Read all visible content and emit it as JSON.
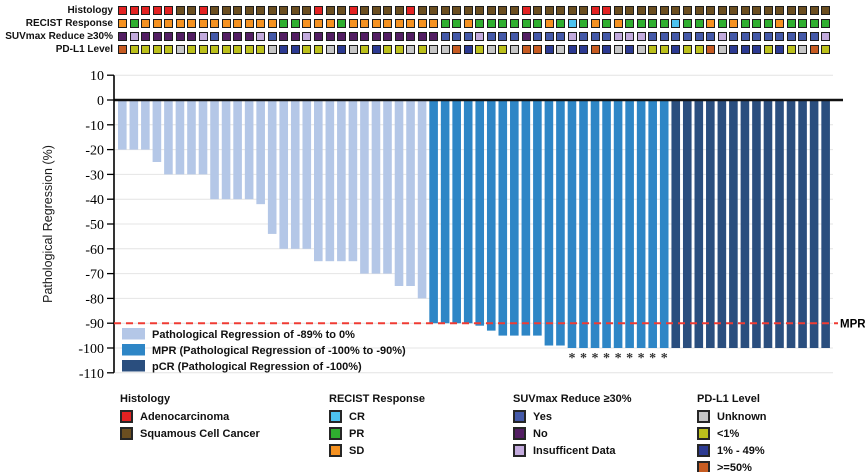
{
  "annotation_tracks": {
    "color_map": {
      "A": "#e32222",
      "S": "#6b4e20",
      "O": "#f59120",
      "G": "#2fae2f",
      "C": "#4dc3f0",
      "Y": "#4459a8",
      "N": "#531e63",
      "I": "#c3abdd",
      "U": "#c6c6c6",
      "L": "#bcc01c",
      "M": "#2c3a92",
      "H": "#c75c22"
    },
    "rows": [
      {
        "label": "Histology",
        "values": "AAAAASSASSSSSSSSSASSASSSSASSSSSSSSSASSSSSAASSSSSSSSSSSSSSSSSSS"
      },
      {
        "label": "RECIST Response",
        "values": "OGOOOOOOOOOOOOGGOOOGOOOOOOOOGGOGGGGGGOGCGOGOGGGGCGGOGOGGGOGGGG"
      },
      {
        "label": "SUVmax Reduce ≥30%",
        "values": "NINNNNNIYNNNIYNNINNNNNNNNNNNYYYIYYYNYYYIYYYIIIYYYYYYIYYYYYYYYI"
      },
      {
        "label": "PD-L1 Level",
        "values": "HLLLLULLLLLLLUMMLLUMULMLLULUUHMLULUHHMUMMHMUMULLMLLHUMMMLMLUHL"
      }
    ]
  },
  "chart_data": {
    "type": "bar",
    "title": "",
    "xlabel": "",
    "ylabel": "Pathological Regression (%)",
    "ylim": [
      -110,
      10
    ],
    "yticks": [
      10,
      0,
      -10,
      -20,
      -30,
      -40,
      -50,
      -60,
      -70,
      -80,
      -90,
      -100,
      -110
    ],
    "grid": true,
    "legend_position": "inside-bottom-left",
    "series": [
      {
        "name": "Pathological Regression of -89% to 0%",
        "color": "#b4c7e7",
        "values": [
          -20,
          -20,
          -20,
          -25,
          -30,
          -30,
          -30,
          -30,
          -40,
          -40,
          -40,
          -40,
          -42,
          -54,
          -60,
          -60,
          -60,
          -65,
          -65,
          -65,
          -65,
          -70,
          -70,
          -70,
          -75,
          -75,
          -80
        ]
      },
      {
        "name": "MPR (Pathological Regression of -100% to -90%)",
        "color": "#2e86c6",
        "values": [
          -90,
          -90,
          -90,
          -90,
          -91,
          -93,
          -95,
          -95,
          -95,
          -95,
          -99,
          -99,
          -100,
          -100,
          -100,
          -100,
          -100,
          -100,
          -100,
          -100,
          -100
        ]
      },
      {
        "name": "pCR (Pathological Regression of -100%)",
        "color": "#2a4e7e",
        "values": [
          -100,
          -100,
          -100,
          -100,
          -100,
          -100,
          -100,
          -100,
          -100,
          -100,
          -100,
          -100,
          -100,
          -100
        ]
      }
    ],
    "asterisk_bar_indices": [
      39,
      40,
      41,
      42,
      43,
      44,
      45,
      46,
      47
    ],
    "asterisk_symbol": "*",
    "reference_line": {
      "value": -90,
      "label": "MPR",
      "color": "#ef3b33",
      "style": "dashed"
    }
  },
  "legend": {
    "groups": [
      {
        "title": "Histology",
        "items": [
          {
            "label": "Adenocarcinoma",
            "color": "#e32222"
          },
          {
            "label": "Squamous Cell Cancer",
            "color": "#6b4e20"
          }
        ]
      },
      {
        "title": "RECIST Response",
        "items": [
          {
            "label": "CR",
            "color": "#4dc3f0"
          },
          {
            "label": "PR",
            "color": "#2fae2f"
          },
          {
            "label": "SD",
            "color": "#f59120"
          }
        ]
      },
      {
        "title": "SUVmax Reduce ≥30%",
        "items": [
          {
            "label": "Yes",
            "color": "#4459a8"
          },
          {
            "label": "No",
            "color": "#531e63"
          },
          {
            "label": "Insufficent Data",
            "color": "#c3abdd"
          }
        ]
      },
      {
        "title": "PD-L1 Level",
        "items": [
          {
            "label": "Unknown",
            "color": "#c6c6c6"
          },
          {
            "label": "<1%",
            "color": "#bcc01c"
          },
          {
            "label": "1% - 49%",
            "color": "#2c3a92"
          },
          {
            "label": ">=50%",
            "color": "#c75c22"
          }
        ]
      }
    ]
  }
}
